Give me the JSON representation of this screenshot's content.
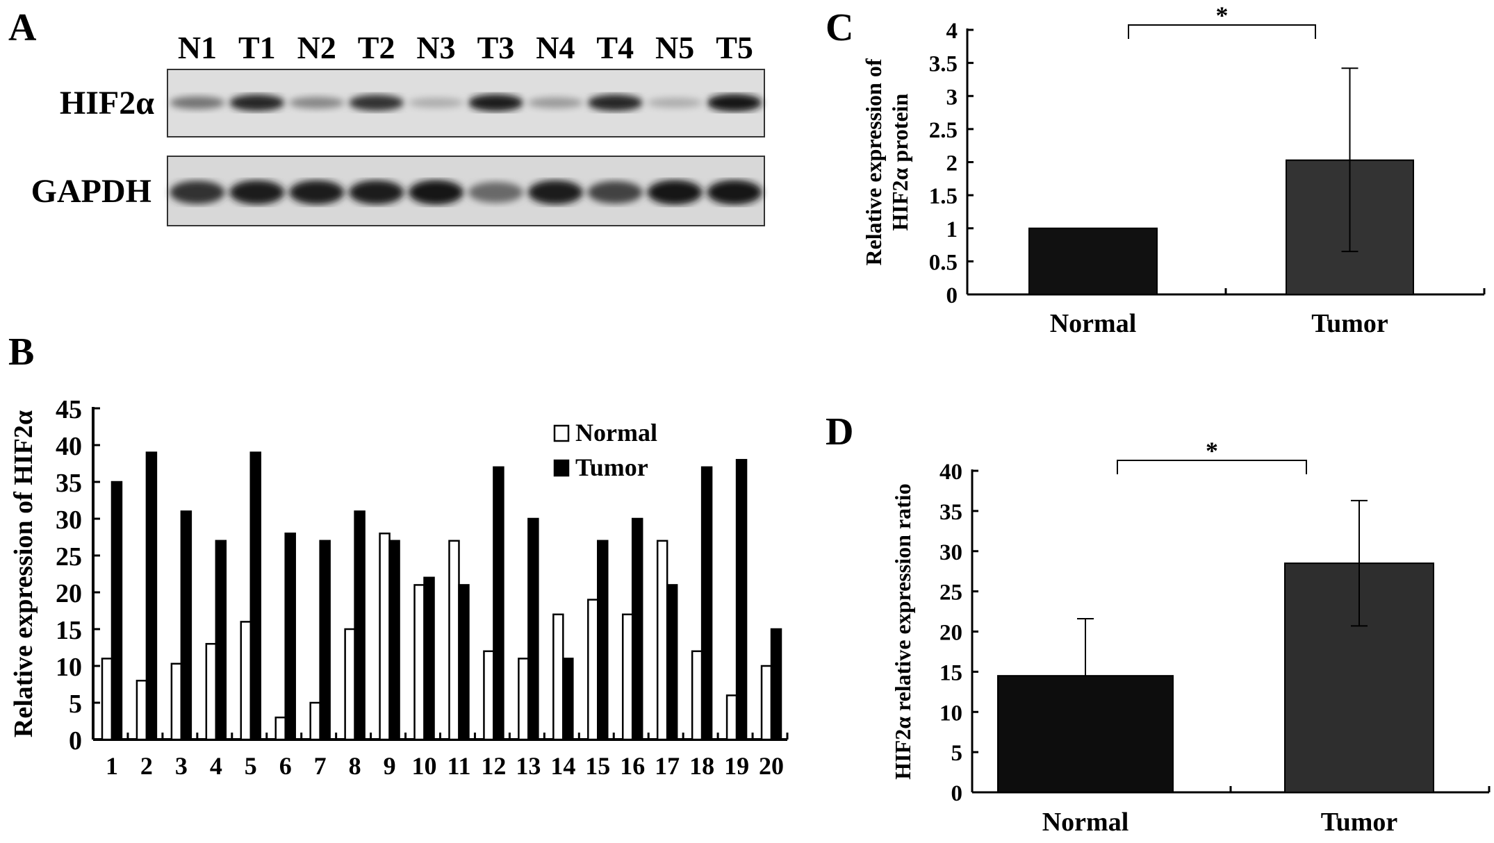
{
  "panel_labels": {
    "a": "A",
    "b": "B",
    "c": "C",
    "d": "D"
  },
  "western_blot": {
    "lanes": [
      "N1",
      "T1",
      "N2",
      "T2",
      "N3",
      "T3",
      "N4",
      "T4",
      "N5",
      "T5"
    ],
    "rows": [
      "HIF2α",
      "GAPDH"
    ]
  },
  "chart_data": [
    {
      "panel": "B",
      "type": "bar",
      "categories": [
        "1",
        "2",
        "3",
        "4",
        "5",
        "6",
        "7",
        "8",
        "9",
        "10",
        "11",
        "12",
        "13",
        "14",
        "15",
        "16",
        "17",
        "18",
        "19",
        "20"
      ],
      "series": [
        {
          "name": "Normal",
          "values": [
            11,
            8,
            10.3,
            13,
            16,
            3,
            5,
            15,
            28,
            21,
            27,
            12,
            11,
            17,
            19,
            17,
            27,
            12,
            6,
            10
          ],
          "color": "#ffffff"
        },
        {
          "name": "Tumor",
          "values": [
            35,
            39,
            31,
            27,
            39,
            28,
            27,
            31,
            27,
            22,
            21,
            37,
            30,
            11,
            27,
            30,
            21,
            37,
            38,
            15
          ],
          "color": "#000000"
        }
      ],
      "ylabel": "Relative expression of HIF2α",
      "ylim": [
        0,
        45
      ],
      "yticks": [
        0,
        5,
        10,
        15,
        20,
        25,
        30,
        35,
        40,
        45
      ],
      "legend_placement": "top-right",
      "grid": false
    },
    {
      "panel": "C",
      "type": "bar",
      "categories": [
        "Normal",
        "Tumor"
      ],
      "values": [
        1,
        2.03
      ],
      "error_low": [
        1,
        0.65
      ],
      "error_high": [
        1,
        3.42
      ],
      "colors": [
        "#111111",
        "#333333"
      ],
      "ylabel_line1": "Relative expression of",
      "ylabel_line2": "HIF2α protein",
      "ylim": [
        0,
        4
      ],
      "yticks": [
        "0",
        "0.5",
        "1",
        "1.5",
        "2",
        "2.5",
        "3",
        "3.5",
        "4"
      ],
      "significance": "*",
      "grid": false
    },
    {
      "panel": "D",
      "type": "bar",
      "categories": [
        "Normal",
        "Tumor"
      ],
      "values": [
        14.5,
        28.5
      ],
      "error_low": [
        14.5,
        20.7
      ],
      "error_high": [
        21.6,
        36.3
      ],
      "colors": [
        "#0d0d0d",
        "#2e2e2e"
      ],
      "ylabel": "HIF2α relative expression ratio",
      "ylim": [
        0,
        40
      ],
      "yticks": [
        "0",
        "5",
        "10",
        "15",
        "20",
        "25",
        "30",
        "35",
        "40"
      ],
      "significance": "*",
      "grid": false
    }
  ]
}
